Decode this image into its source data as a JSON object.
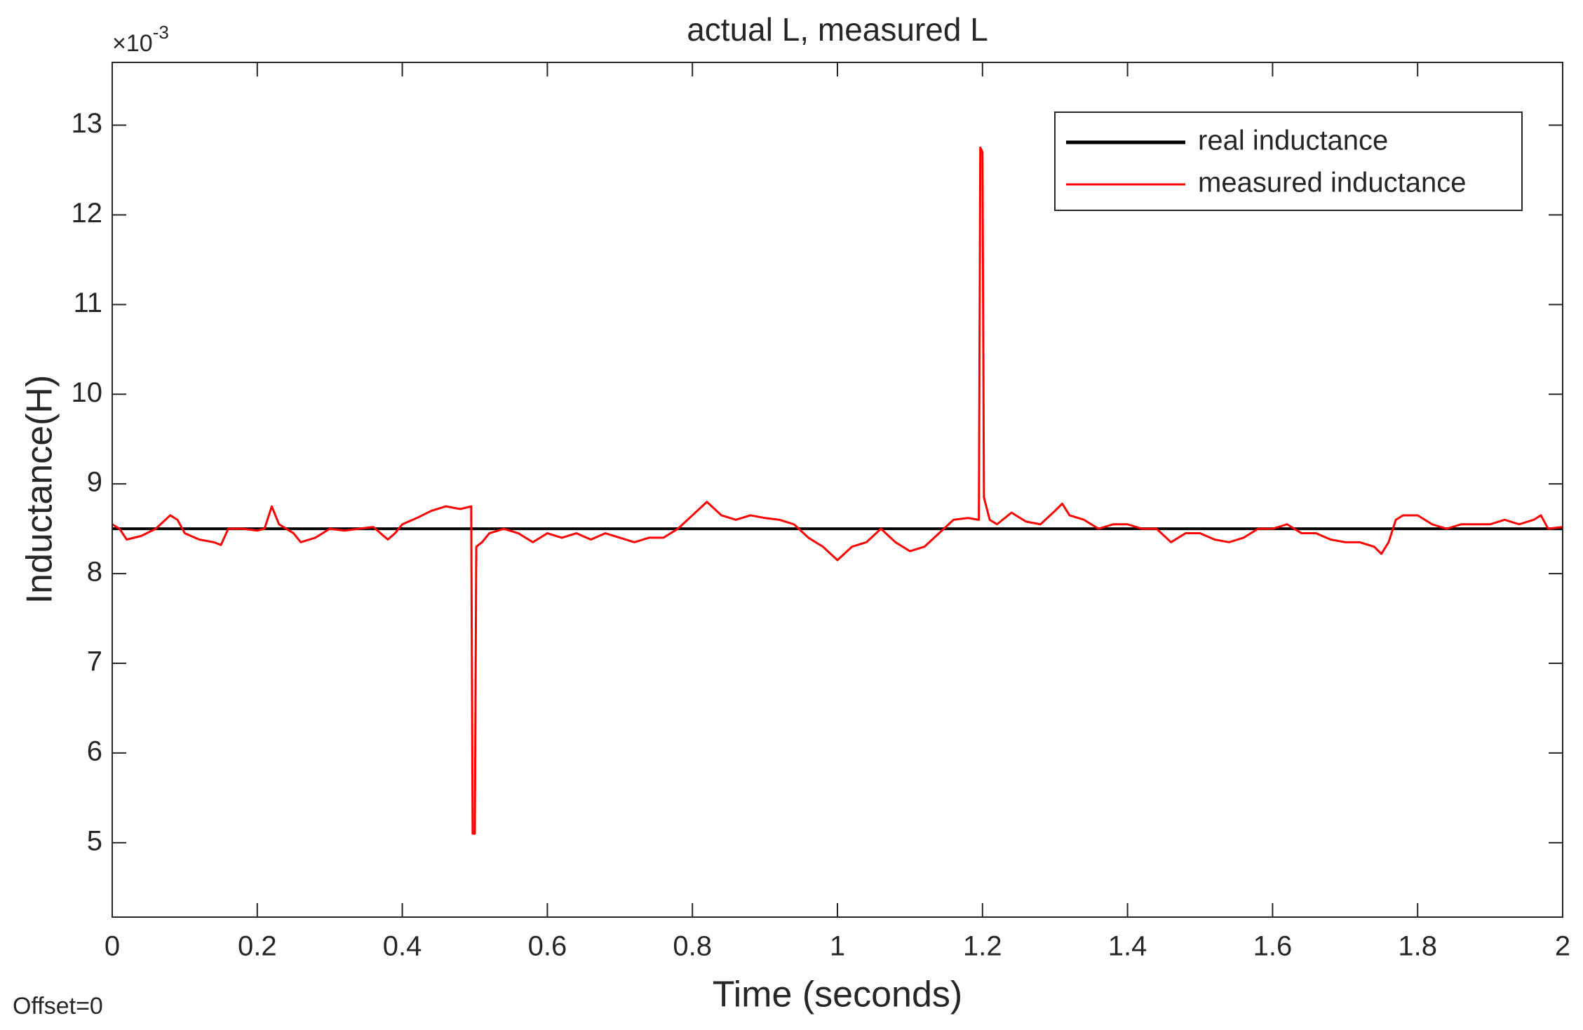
{
  "chart_data": {
    "type": "line",
    "title": "actual L, measured L",
    "x_label": "Time (seconds)",
    "y_label": "Inductance(H)",
    "y_multiplier": {
      "base": "×10",
      "exponent": "-3"
    },
    "footnote": "Offset=0",
    "xlim": [
      0,
      2
    ],
    "xticks": [
      0,
      0.2,
      0.4,
      0.6,
      0.8,
      1,
      1.2,
      1.4,
      1.6,
      1.8,
      2
    ],
    "ylim": [
      4.17,
      13.7
    ],
    "yticks": [
      5,
      6,
      7,
      8,
      9,
      10,
      11,
      12,
      13
    ],
    "grid": false,
    "legend": "top-right",
    "series": [
      {
        "name": "real inductance",
        "color": "#000000",
        "x": [
          0,
          2
        ],
        "values": [
          8.5,
          8.5
        ]
      },
      {
        "name": "measured inductance",
        "color": "#ff0000",
        "x": [
          0,
          0.01,
          0.02,
          0.04,
          0.06,
          0.08,
          0.09,
          0.1,
          0.12,
          0.14,
          0.15,
          0.16,
          0.18,
          0.2,
          0.21,
          0.22,
          0.23,
          0.25,
          0.26,
          0.28,
          0.3,
          0.32,
          0.34,
          0.36,
          0.38,
          0.39,
          0.4,
          0.42,
          0.44,
          0.46,
          0.48,
          0.495,
          0.497,
          0.5,
          0.502,
          0.51,
          0.52,
          0.54,
          0.56,
          0.58,
          0.6,
          0.62,
          0.64,
          0.66,
          0.68,
          0.7,
          0.72,
          0.74,
          0.76,
          0.78,
          0.8,
          0.82,
          0.84,
          0.86,
          0.88,
          0.9,
          0.92,
          0.94,
          0.96,
          0.98,
          1.0,
          1.02,
          1.04,
          1.06,
          1.08,
          1.1,
          1.12,
          1.14,
          1.16,
          1.18,
          1.195,
          1.197,
          1.2,
          1.202,
          1.21,
          1.22,
          1.24,
          1.26,
          1.28,
          1.3,
          1.31,
          1.32,
          1.34,
          1.36,
          1.38,
          1.4,
          1.42,
          1.44,
          1.46,
          1.48,
          1.5,
          1.52,
          1.54,
          1.56,
          1.58,
          1.6,
          1.62,
          1.64,
          1.66,
          1.68,
          1.7,
          1.72,
          1.74,
          1.75,
          1.76,
          1.77,
          1.78,
          1.8,
          1.82,
          1.84,
          1.86,
          1.88,
          1.9,
          1.92,
          1.94,
          1.96,
          1.97,
          1.98,
          2.0
        ],
        "values": [
          8.55,
          8.5,
          8.38,
          8.42,
          8.5,
          8.65,
          8.6,
          8.45,
          8.38,
          8.35,
          8.32,
          8.5,
          8.5,
          8.48,
          8.5,
          8.75,
          8.55,
          8.45,
          8.35,
          8.4,
          8.5,
          8.48,
          8.5,
          8.52,
          8.38,
          8.45,
          8.55,
          8.62,
          8.7,
          8.75,
          8.72,
          8.75,
          5.1,
          5.1,
          8.3,
          8.35,
          8.45,
          8.5,
          8.45,
          8.35,
          8.45,
          8.4,
          8.45,
          8.38,
          8.45,
          8.4,
          8.35,
          8.4,
          8.4,
          8.5,
          8.65,
          8.8,
          8.65,
          8.6,
          8.65,
          8.62,
          8.6,
          8.55,
          8.4,
          8.3,
          8.15,
          8.3,
          8.35,
          8.5,
          8.35,
          8.25,
          8.3,
          8.45,
          8.6,
          8.62,
          8.6,
          12.75,
          12.7,
          8.85,
          8.6,
          8.55,
          8.68,
          8.58,
          8.55,
          8.7,
          8.78,
          8.65,
          8.6,
          8.5,
          8.55,
          8.55,
          8.5,
          8.5,
          8.35,
          8.45,
          8.45,
          8.38,
          8.35,
          8.4,
          8.5,
          8.5,
          8.55,
          8.45,
          8.45,
          8.38,
          8.35,
          8.35,
          8.3,
          8.22,
          8.35,
          8.6,
          8.65,
          8.65,
          8.55,
          8.5,
          8.55,
          8.55,
          8.55,
          8.6,
          8.55,
          8.6,
          8.65,
          8.5,
          8.52
        ]
      }
    ]
  }
}
